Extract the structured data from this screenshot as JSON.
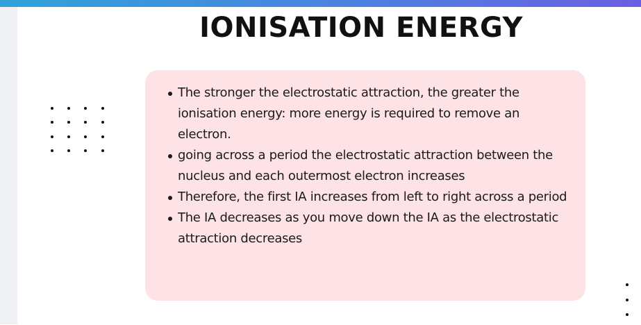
{
  "slide": {
    "title": "IONISATION ENERGY",
    "bullets": [
      "The stronger the electrostatic attraction, the greater the ionisation energy: more energy is required to remove an electron.",
      "going across a period the electrostatic attraction between the nucleus and each outermost electron increases",
      "Therefore, the first  IA increases from left to right across a period",
      "The IA decreases as you move down the IA as the electrostatic attraction decreases"
    ]
  },
  "colors": {
    "card_background": "#fde3e6",
    "top_bar_start": "#2fa3d9",
    "top_bar_end": "#6a5fe2",
    "left_strip": "#eef0f3"
  }
}
